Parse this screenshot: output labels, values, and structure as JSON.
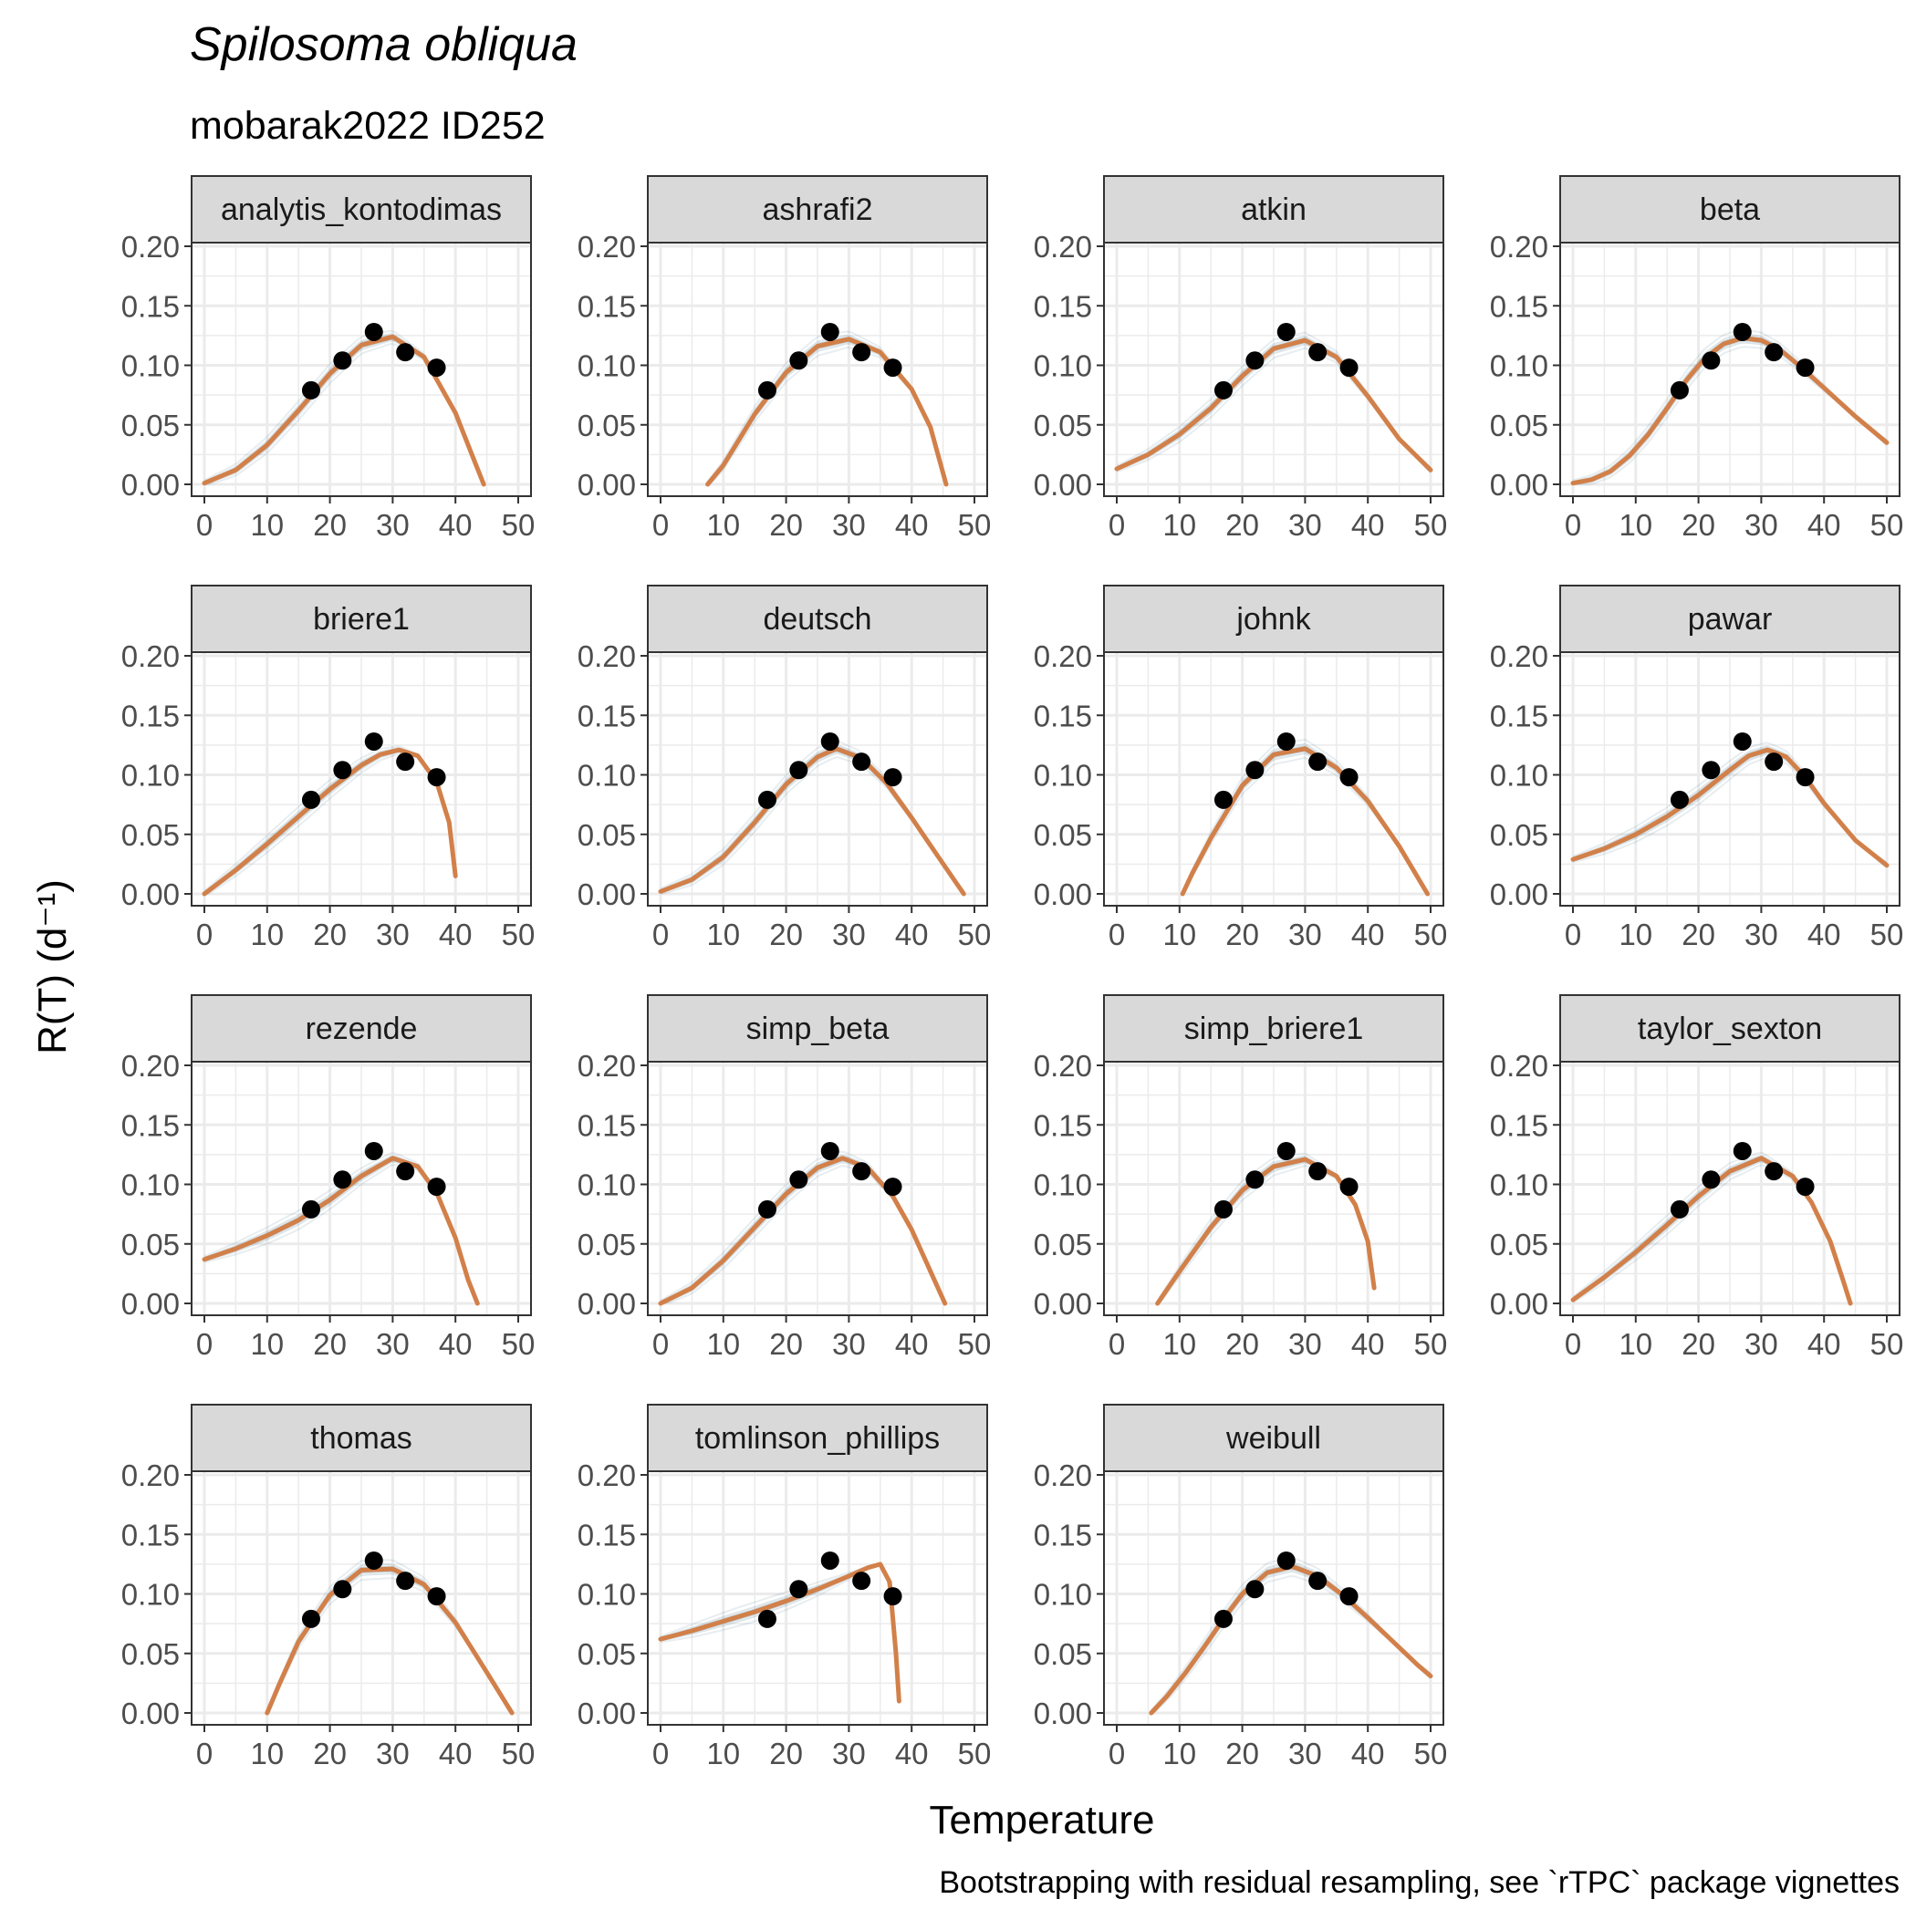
{
  "chart_data": {
    "type": "line",
    "title": "Spilosoma obliqua",
    "subtitle": "mobarak2022 ID252",
    "xlabel": "Temperature",
    "ylabel": "R(T) (d⁻¹)",
    "caption": "Bootstrapping with residual resampling, see `rTPC` package vignettes",
    "xlim": [
      0,
      50
    ],
    "ylim": [
      0,
      0.2
    ],
    "x_ticks": [
      "0",
      "10",
      "20",
      "30",
      "40",
      "50"
    ],
    "y_ticks": [
      "0.00",
      "0.05",
      "0.10",
      "0.15",
      "0.20"
    ],
    "grid": true,
    "colors": {
      "fit": "#d2804a",
      "bootstrap": "#3b6e86",
      "points": "#000000",
      "strip_bg": "#d9d9d9",
      "grid": "#ebebeb"
    },
    "observations": {
      "x": [
        17,
        22,
        27,
        32,
        37
      ],
      "y": [
        0.079,
        0.104,
        0.128,
        0.111,
        0.098
      ]
    },
    "panels": [
      {
        "name": "analytis_kontodimas",
        "fit": {
          "x": [
            0,
            5,
            10,
            15,
            20,
            25,
            30,
            35,
            40,
            43,
            44.5
          ],
          "y": [
            0.001,
            0.012,
            0.033,
            0.062,
            0.093,
            0.117,
            0.124,
            0.107,
            0.06,
            0.02,
            0.0
          ]
        }
      },
      {
        "name": "ashrafi2",
        "fit": {
          "x": [
            7.5,
            10,
            15,
            20,
            25,
            30,
            35,
            40,
            43,
            45.5
          ],
          "y": [
            0.0,
            0.016,
            0.059,
            0.094,
            0.116,
            0.122,
            0.111,
            0.08,
            0.048,
            0.0
          ]
        }
      },
      {
        "name": "atkin",
        "fit": {
          "x": [
            0,
            5,
            10,
            15,
            20,
            25,
            30,
            35,
            40,
            45,
            50
          ],
          "y": [
            0.013,
            0.025,
            0.042,
            0.064,
            0.091,
            0.114,
            0.121,
            0.107,
            0.074,
            0.038,
            0.012
          ]
        }
      },
      {
        "name": "beta",
        "fit": {
          "x": [
            0,
            3,
            6,
            9,
            12,
            15,
            18,
            21,
            24,
            27,
            30,
            33,
            36,
            40,
            45,
            50
          ],
          "y": [
            0.001,
            0.004,
            0.011,
            0.024,
            0.042,
            0.064,
            0.087,
            0.106,
            0.118,
            0.123,
            0.121,
            0.113,
            0.1,
            0.081,
            0.057,
            0.035
          ]
        }
      },
      {
        "name": "briere1",
        "fit": {
          "x": [
            0,
            5,
            10,
            15,
            20,
            25,
            28,
            31,
            34,
            37,
            39,
            40
          ],
          "y": [
            0.0,
            0.02,
            0.042,
            0.065,
            0.088,
            0.108,
            0.117,
            0.121,
            0.116,
            0.094,
            0.06,
            0.015
          ]
        }
      },
      {
        "name": "deutsch",
        "fit": {
          "x": [
            0,
            5,
            10,
            15,
            20,
            25,
            28,
            32,
            36,
            40,
            44,
            48.3
          ],
          "y": [
            0.002,
            0.012,
            0.031,
            0.06,
            0.092,
            0.115,
            0.122,
            0.114,
            0.093,
            0.064,
            0.033,
            0.0
          ]
        }
      },
      {
        "name": "johnk",
        "fit": {
          "x": [
            10.5,
            12,
            15,
            20,
            25,
            30,
            35,
            40,
            45,
            49.5
          ],
          "y": [
            0.0,
            0.017,
            0.047,
            0.091,
            0.117,
            0.122,
            0.106,
            0.078,
            0.04,
            0.0
          ]
        }
      },
      {
        "name": "pawar",
        "fit": {
          "x": [
            0,
            5,
            10,
            15,
            20,
            25,
            28,
            31,
            34,
            37,
            40,
            45,
            50
          ],
          "y": [
            0.029,
            0.038,
            0.05,
            0.065,
            0.083,
            0.104,
            0.116,
            0.121,
            0.115,
            0.098,
            0.076,
            0.045,
            0.024
          ]
        }
      },
      {
        "name": "rezende",
        "fit": {
          "x": [
            0,
            5,
            10,
            15,
            20,
            25,
            30,
            34,
            37,
            40,
            42,
            43.5
          ],
          "y": [
            0.037,
            0.046,
            0.057,
            0.07,
            0.087,
            0.107,
            0.122,
            0.115,
            0.093,
            0.055,
            0.02,
            0.0
          ]
        }
      },
      {
        "name": "simp_beta",
        "fit": {
          "x": [
            0,
            5,
            10,
            15,
            20,
            25,
            29,
            33,
            37,
            40,
            43,
            45.3
          ],
          "y": [
            0.0,
            0.013,
            0.036,
            0.064,
            0.092,
            0.114,
            0.122,
            0.114,
            0.09,
            0.062,
            0.027,
            0.0
          ]
        }
      },
      {
        "name": "simp_briere1",
        "fit": {
          "x": [
            6.5,
            10,
            15,
            20,
            25,
            30,
            35,
            38,
            40,
            41
          ],
          "y": [
            0.0,
            0.027,
            0.064,
            0.095,
            0.115,
            0.121,
            0.107,
            0.083,
            0.052,
            0.013
          ]
        }
      },
      {
        "name": "taylor_sexton",
        "fit": {
          "x": [
            0,
            5,
            10,
            15,
            20,
            25,
            30,
            35,
            38,
            41,
            43,
            44.2
          ],
          "y": [
            0.003,
            0.022,
            0.043,
            0.066,
            0.09,
            0.111,
            0.122,
            0.107,
            0.085,
            0.052,
            0.02,
            0.0
          ]
        }
      },
      {
        "name": "thomas",
        "fit": {
          "x": [
            10,
            12,
            15,
            20,
            25,
            30,
            35,
            40,
            45,
            49
          ],
          "y": [
            0.0,
            0.025,
            0.06,
            0.099,
            0.12,
            0.121,
            0.108,
            0.076,
            0.034,
            0.0
          ]
        }
      },
      {
        "name": "tomlinson_phillips",
        "fit": {
          "x": [
            0,
            5,
            10,
            15,
            20,
            25,
            30,
            33,
            35,
            36.5,
            37.5,
            38
          ],
          "y": [
            0.062,
            0.069,
            0.077,
            0.085,
            0.094,
            0.104,
            0.115,
            0.122,
            0.125,
            0.11,
            0.05,
            0.01
          ]
        }
      },
      {
        "name": "weibull",
        "fit": {
          "x": [
            5.5,
            8,
            11,
            14,
            17,
            20,
            24,
            28,
            32,
            36,
            40,
            44,
            48,
            50
          ],
          "y": [
            0.0,
            0.014,
            0.034,
            0.056,
            0.079,
            0.1,
            0.118,
            0.123,
            0.115,
            0.099,
            0.08,
            0.06,
            0.04,
            0.031
          ]
        }
      }
    ]
  }
}
